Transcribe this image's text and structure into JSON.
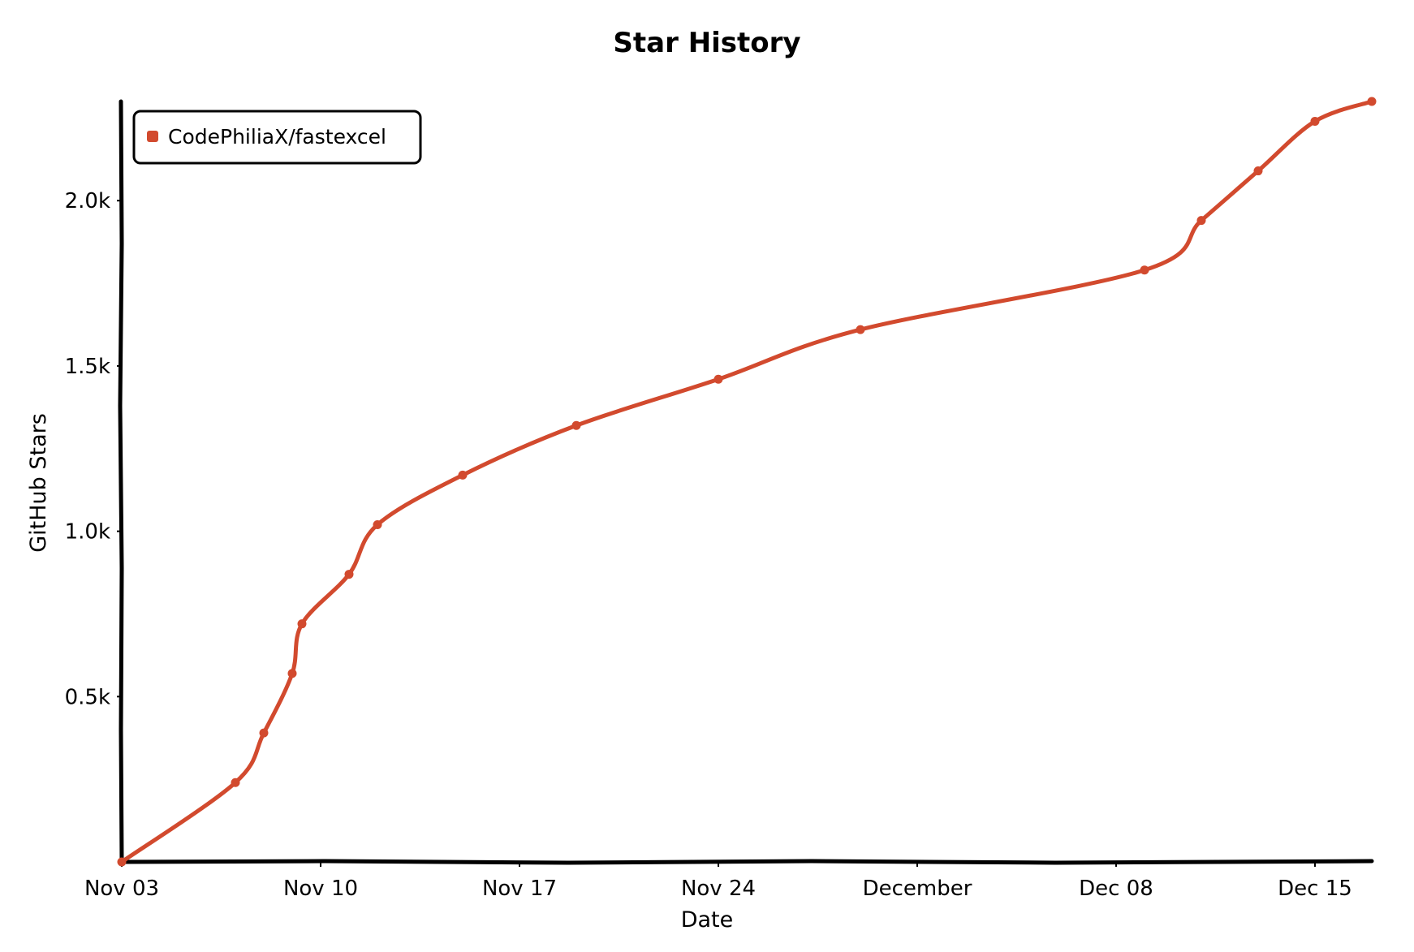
{
  "chart_data": {
    "type": "line",
    "title": "Star History",
    "xlabel": "Date",
    "ylabel": "GitHub Stars",
    "x_ticks": [
      {
        "date": "2024-11-03",
        "label": "Nov 03"
      },
      {
        "date": "2024-11-10",
        "label": "Nov 10"
      },
      {
        "date": "2024-11-17",
        "label": "Nov 17"
      },
      {
        "date": "2024-11-24",
        "label": "Nov 24"
      },
      {
        "date": "2024-12-01",
        "label": "December"
      },
      {
        "date": "2024-12-08",
        "label": "Dec 08"
      },
      {
        "date": "2024-12-15",
        "label": "Dec 15"
      }
    ],
    "y_ticks": [
      {
        "value": 500,
        "label": "0.5k"
      },
      {
        "value": 1000,
        "label": "1.0k"
      },
      {
        "value": 1500,
        "label": "1.5k"
      },
      {
        "value": 2000,
        "label": "2.0k"
      }
    ],
    "xlim": [
      "2024-11-03",
      "2024-12-17"
    ],
    "ylim": [
      0,
      2300
    ],
    "grid": false,
    "legend": "top-left",
    "series": [
      {
        "name": "CodePhiliaX/fastexcel",
        "color": "#d24a2e",
        "points": [
          {
            "x": "2024-11-03",
            "y": 0
          },
          {
            "x": "2024-11-07",
            "y": 240
          },
          {
            "x": "2024-11-08",
            "y": 390
          },
          {
            "x": "2024-11-09",
            "y": 570
          },
          {
            "x": "2024-11-09",
            "y": 720
          },
          {
            "x": "2024-11-11",
            "y": 870
          },
          {
            "x": "2024-11-12",
            "y": 1020
          },
          {
            "x": "2024-11-15",
            "y": 1170
          },
          {
            "x": "2024-11-19",
            "y": 1320
          },
          {
            "x": "2024-11-24",
            "y": 1460
          },
          {
            "x": "2024-11-29",
            "y": 1610
          },
          {
            "x": "2024-12-09",
            "y": 1790
          },
          {
            "x": "2024-12-11",
            "y": 1940
          },
          {
            "x": "2024-12-13",
            "y": 2090
          },
          {
            "x": "2024-12-15",
            "y": 2240
          },
          {
            "x": "2024-12-17",
            "y": 2300
          }
        ]
      }
    ]
  }
}
